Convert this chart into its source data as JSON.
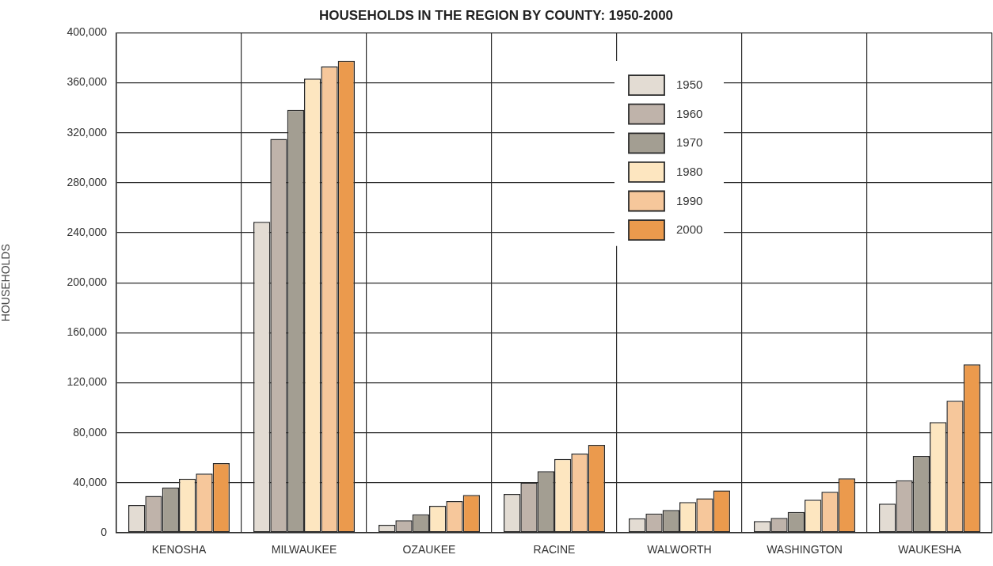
{
  "chart_data": {
    "type": "bar",
    "title": "HOUSEHOLDS IN THE REGION BY COUNTY: 1950-2000",
    "ylabel": "HOUSEHOLDS",
    "categories": [
      "KENOSHA",
      "MILWAUKEE",
      "OZAUKEE",
      "RACINE",
      "WALWORTH",
      "WASHINGTON",
      "WAUKESHA"
    ],
    "series": [
      {
        "name": "1950",
        "color": "#e3dcd3",
        "values": [
          22200,
          248800,
          6300,
          31100,
          11600,
          9300,
          23300
        ]
      },
      {
        "name": "1960",
        "color": "#bfb3aa",
        "values": [
          29400,
          315000,
          9900,
          40000,
          15400,
          11900,
          41900
        ]
      },
      {
        "name": "1970",
        "color": "#a39e92",
        "values": [
          36100,
          338300,
          14800,
          49300,
          18200,
          16700,
          61400
        ]
      },
      {
        "name": "1980",
        "color": "#fde6c0",
        "values": [
          43300,
          363400,
          21600,
          59000,
          24600,
          26500,
          88500
        ]
      },
      {
        "name": "1990",
        "color": "#f6c79b",
        "values": [
          47300,
          373000,
          25400,
          63300,
          27500,
          32800,
          105600
        ]
      },
      {
        "name": "2000",
        "color": "#eb9a4d",
        "values": [
          55800,
          377600,
          30300,
          70300,
          33900,
          43600,
          134800
        ]
      }
    ],
    "ylim": [
      0,
      400000
    ],
    "yticks": [
      0,
      {
        "value": 40000,
        "label": "40,000"
      },
      {
        "value": 80000,
        "label": "80,000"
      },
      {
        "value": 120000,
        "label": "120,000"
      },
      {
        "value": 160000,
        "label": "160,000"
      },
      {
        "value": 200000,
        "label": "200,000"
      },
      {
        "value": 240000,
        "label": "240,000"
      },
      {
        "value": 280000,
        "label": "280,000"
      },
      {
        "value": 320000,
        "label": "320,000"
      },
      {
        "value": 360000,
        "label": "360,000"
      },
      {
        "value": 400000,
        "label": "400,000"
      }
    ],
    "grid": true,
    "legend": "top right"
  }
}
